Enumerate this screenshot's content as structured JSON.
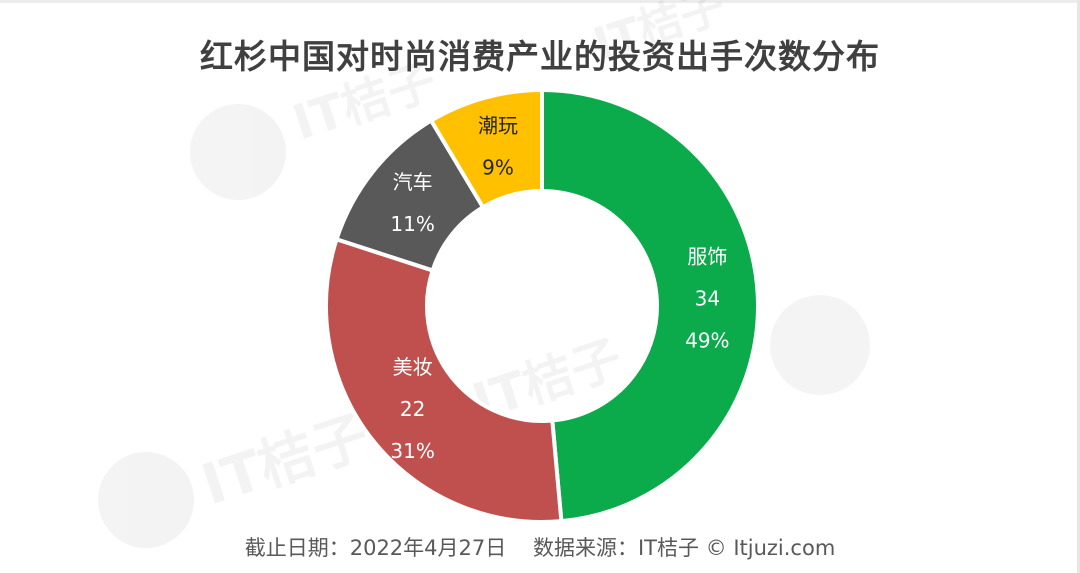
{
  "chart_data": {
    "type": "pie",
    "subtype": "donut",
    "title": "红杉中国对时尚消费产业的投资出手次数分布",
    "categories": [
      "服饰",
      "美妆",
      "汽车",
      "潮玩"
    ],
    "values": [
      34,
      22,
      8,
      6
    ],
    "percentages": [
      49,
      31,
      11,
      9
    ],
    "value_labels_shown": [
      true,
      true,
      false,
      false
    ],
    "colors": [
      "#0BAA4B",
      "#C0504D",
      "#595959",
      "#FFC000"
    ],
    "start_angle_deg": 0,
    "direction": "clockwise",
    "legend": "none",
    "footer": "截止日期：2022年4月27日    数据来源：IT桔子 © Itjuzi.com"
  },
  "title": "红杉中国对时尚消费产业的投资出手次数分布",
  "footer": "截止日期：2022年4月27日    数据来源：IT桔子 © Itjuzi.com",
  "segments": [
    {
      "name": "服饰",
      "value": "34",
      "percent": "49%",
      "color": "#0BAA4B",
      "text_color": "#ffffff"
    },
    {
      "name": "美妆",
      "value": "22",
      "percent": "31%",
      "color": "#C0504D",
      "text_color": "#ffffff"
    },
    {
      "name": "汽车",
      "value": "",
      "percent": "11%",
      "color": "#595959",
      "text_color": "#ffffff"
    },
    {
      "name": "潮玩",
      "value": "",
      "percent": "9%",
      "color": "#FFC000",
      "text_color": "#262626"
    }
  ],
  "watermark": {
    "brand": "IT桔子",
    "domain": "ITJUZI.COM"
  }
}
